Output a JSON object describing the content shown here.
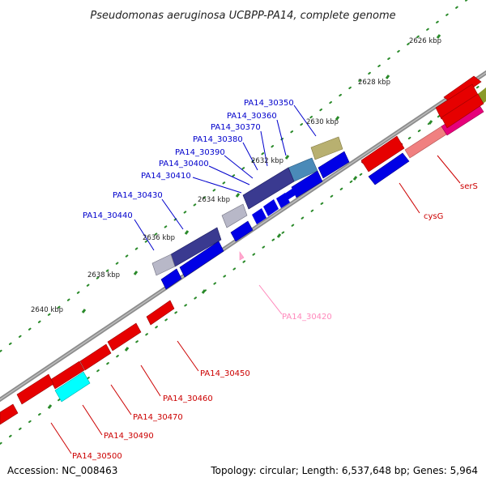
{
  "title": "Pseudomonas aeruginosa UCBPP-PA14, complete genome",
  "footer": {
    "accession": "Accession: NC_008463",
    "stats": "Topology: circular; Length: 6,537,648 bp; Genes: 5,964"
  },
  "colors": {
    "forward_gene": "#e60000",
    "reverse_gene": "#0000e6",
    "backbone": "#8c8c8c",
    "tick": "#2a8a2a",
    "forward_label": "#cc0000",
    "reverse_label": "#0000cc",
    "pink_label": "#ff88bb"
  },
  "scale_ticks": [
    {
      "label": "2626 kbp"
    },
    {
      "label": "2628 kbp"
    },
    {
      "label": "2630 kbp"
    },
    {
      "label": "2632 kbp"
    },
    {
      "label": "2634 kbp"
    },
    {
      "label": "2636 kbp"
    },
    {
      "label": "2638 kbp"
    },
    {
      "label": "2640 kbp"
    }
  ],
  "gene_labels": [
    {
      "text": "PA14_30350",
      "strand": "reverse"
    },
    {
      "text": "PA14_30360",
      "strand": "reverse"
    },
    {
      "text": "PA14_30370",
      "strand": "reverse"
    },
    {
      "text": "PA14_30380",
      "strand": "reverse"
    },
    {
      "text": "PA14_30390",
      "strand": "reverse"
    },
    {
      "text": "PA14_30400",
      "strand": "reverse"
    },
    {
      "text": "PA14_30410",
      "strand": "reverse"
    },
    {
      "text": "PA14_30430",
      "strand": "reverse"
    },
    {
      "text": "PA14_30440",
      "strand": "reverse"
    },
    {
      "text": "serS",
      "strand": "forward"
    },
    {
      "text": "cysG",
      "strand": "forward"
    },
    {
      "text": "PA14_30420",
      "strand": "other"
    },
    {
      "text": "PA14_30450",
      "strand": "forward"
    },
    {
      "text": "PA14_30460",
      "strand": "forward"
    },
    {
      "text": "PA14_30470",
      "strand": "forward"
    },
    {
      "text": "PA14_30490",
      "strand": "forward"
    },
    {
      "text": "PA14_30500",
      "strand": "forward"
    }
  ]
}
